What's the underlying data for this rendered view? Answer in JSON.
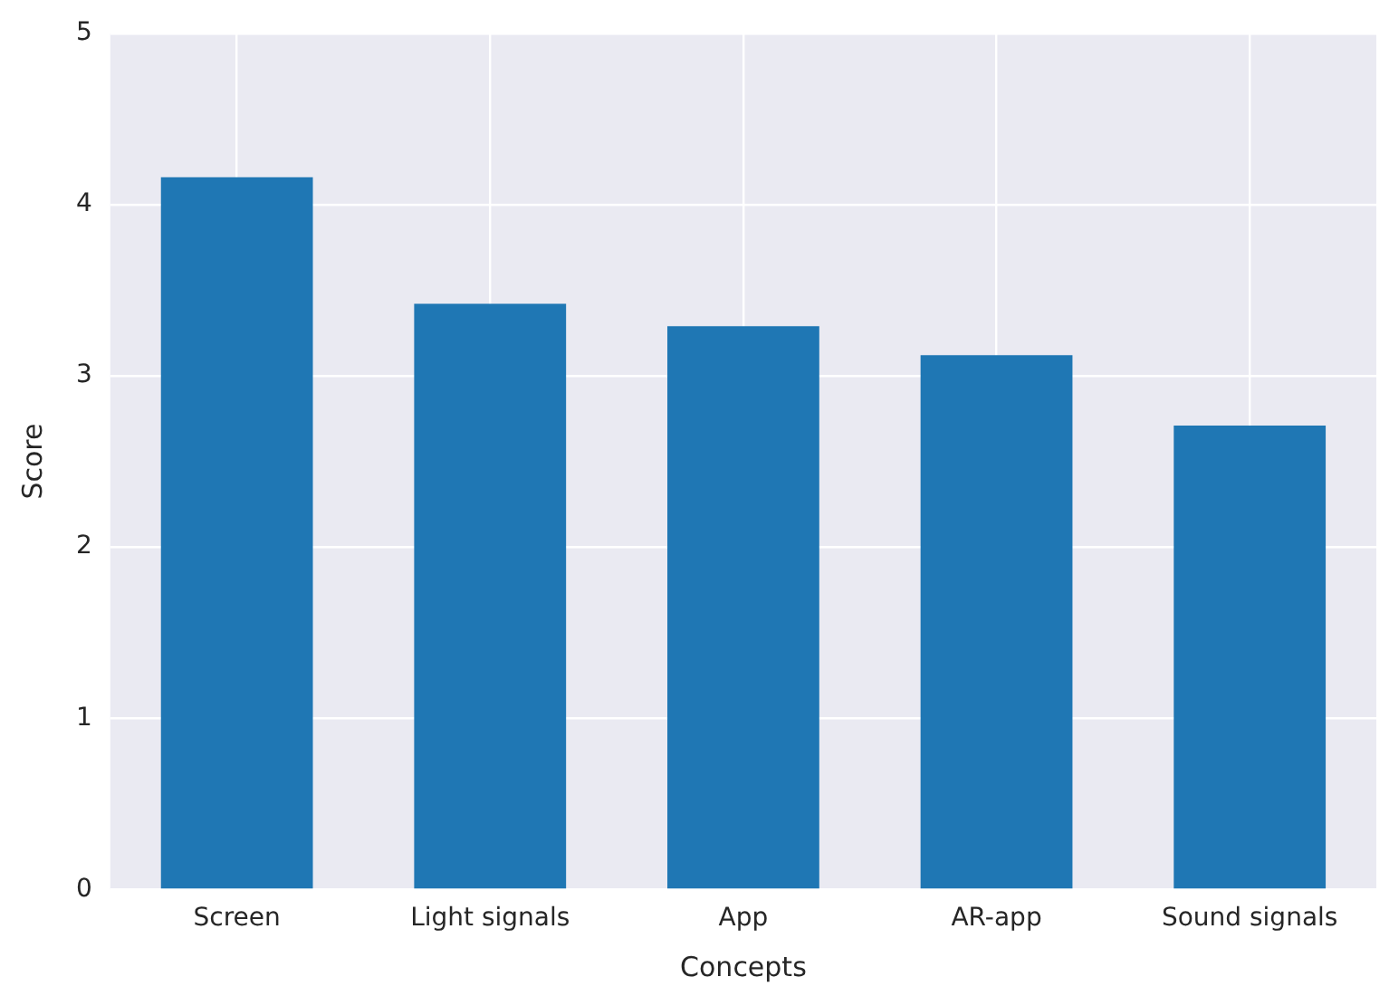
{
  "chart_data": {
    "type": "bar",
    "xlabel": "Concepts",
    "ylabel": "Score",
    "categories": [
      "Screen",
      "Light signals",
      "App",
      "AR-app",
      "Sound signals"
    ],
    "values": [
      4.16,
      3.42,
      3.29,
      3.12,
      2.71
    ],
    "color": "#1f77b4",
    "ylim": [
      0,
      5
    ],
    "yticks": [
      0,
      1,
      2,
      3,
      4,
      5
    ],
    "grid": true
  }
}
